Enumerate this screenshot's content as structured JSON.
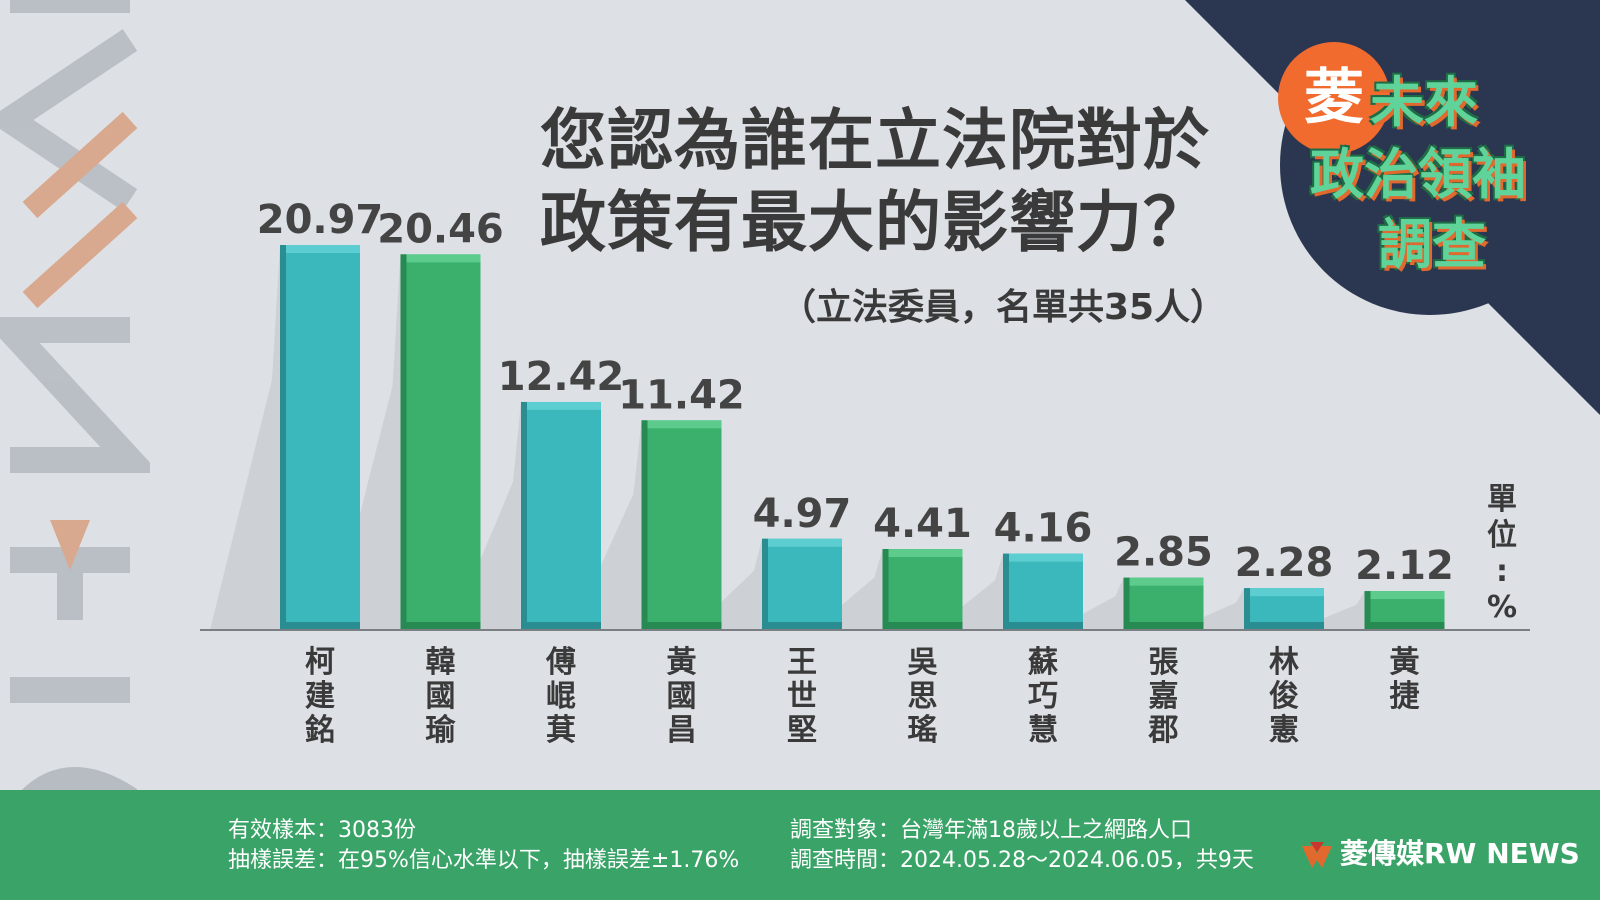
{
  "title_line1": "您認為誰在立法院對於",
  "title_line2": "政策有最大的影響力？",
  "subtitle": "（立法委員，名單共35人）",
  "unit_label": "單位：%",
  "badge": {
    "ling": "菱",
    "line1": "未來",
    "line2": "政治領袖",
    "line3": "調查"
  },
  "footer": {
    "sample": "有效樣本：3083份",
    "error": "抽樣誤差：在95%信心水準以下，抽樣誤差±1.76%",
    "target": "調查對象：台灣年滿18歲以上之網路人口",
    "period": "調查時間：2024.05.28～2024.06.05，共9天",
    "brand": "菱傳媒RW NEWS"
  },
  "watermark": "RW NEWS",
  "colors": {
    "teal": "#3bb8bc",
    "green": "#3ab06c",
    "footer": "#3aa368",
    "navy": "#2b3650",
    "orange": "#f26b2e"
  },
  "chart_data": {
    "type": "bar",
    "categories": [
      "柯建銘",
      "韓國瑜",
      "傅崐萁",
      "黃國昌",
      "王世堅",
      "吳思瑤",
      "蘇巧慧",
      "張嘉郡",
      "林俊憲",
      "黃捷"
    ],
    "values": [
      20.97,
      20.46,
      12.42,
      11.42,
      4.97,
      4.41,
      4.16,
      2.85,
      2.28,
      2.12
    ],
    "value_labels": [
      "20.97",
      "20.46",
      "12.42",
      "11.42",
      "4.97",
      "4.41",
      "4.16",
      "2.85",
      "2.28",
      "2.12"
    ],
    "bar_colors": [
      "teal",
      "green",
      "teal",
      "green",
      "teal",
      "green",
      "teal",
      "green",
      "teal",
      "green"
    ],
    "ylim": [
      0,
      21
    ],
    "grid": false,
    "legend": "none"
  }
}
